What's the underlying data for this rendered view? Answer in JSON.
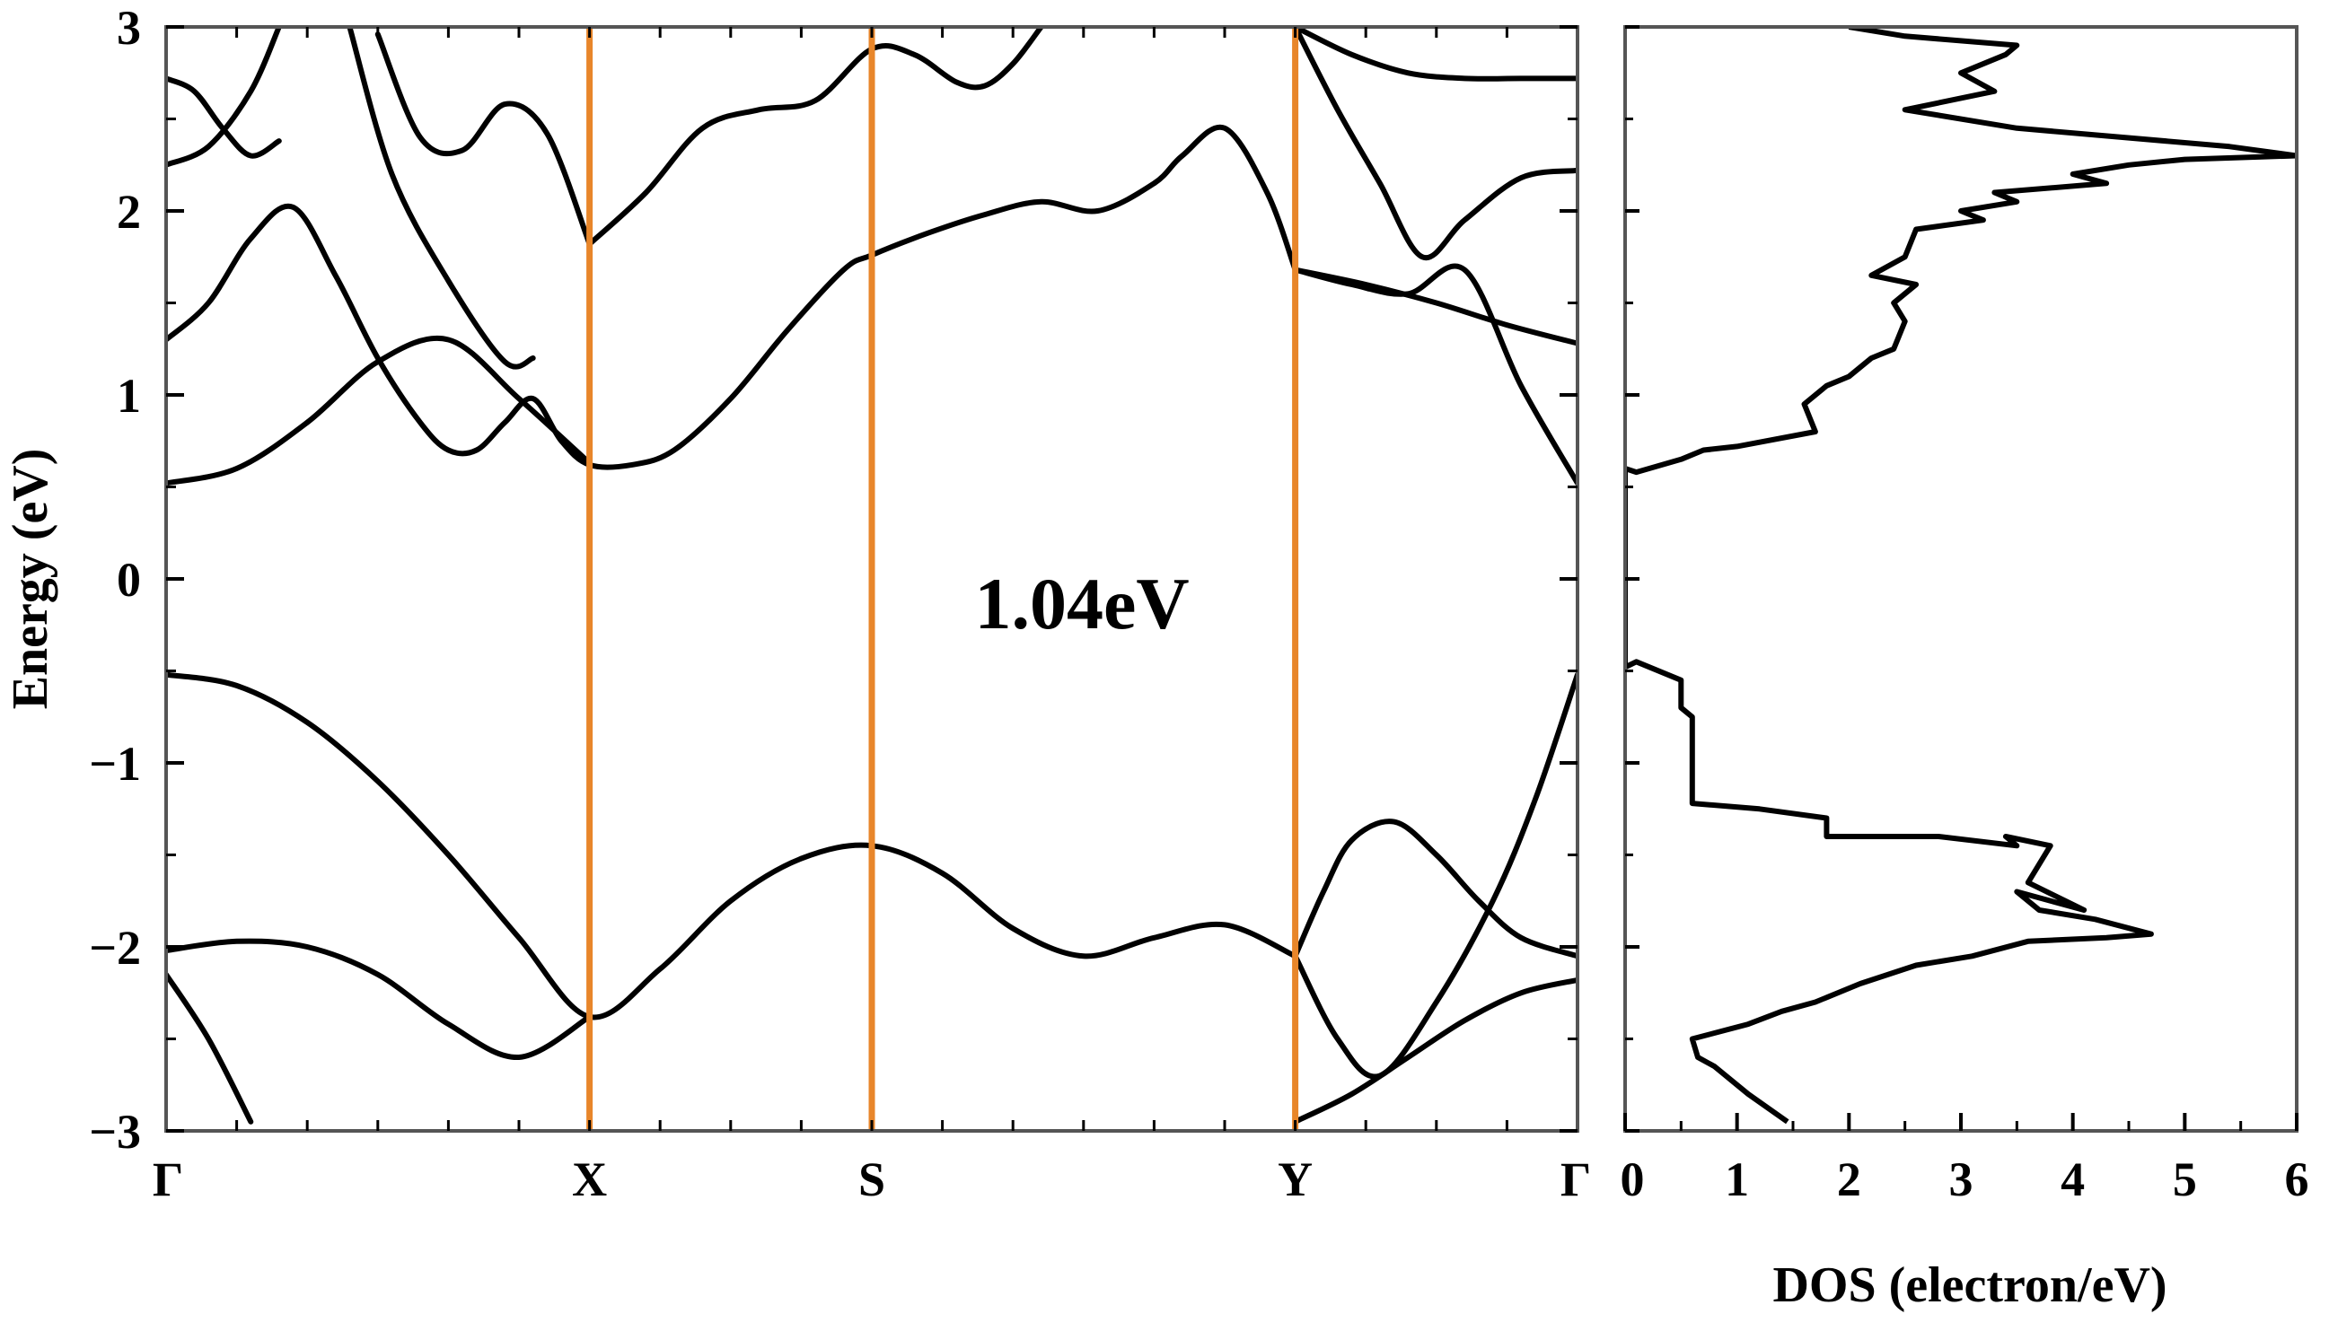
{
  "chart_data": [
    {
      "type": "line",
      "subtype": "band-structure",
      "ylabel": "Energy (eV)",
      "ylim": [
        -3,
        3
      ],
      "yticks": [
        "3",
        "2",
        "1",
        "0",
        "−1",
        "−2",
        "−3"
      ],
      "ytick_values": [
        3,
        2,
        1,
        0,
        -1,
        -2,
        -3
      ],
      "kpath": [
        "Γ",
        "X",
        "S",
        "Y",
        "Γ"
      ],
      "kpath_positions": [
        0,
        0.3,
        0.5,
        0.8,
        1.0
      ],
      "annotation": "1.04eV",
      "colors": {
        "bands": "#000000",
        "symmetry_lines": "#E8862A"
      },
      "bands": [
        {
          "x": [
            0,
            0.05,
            0.1,
            0.15,
            0.2,
            0.25,
            0.3,
            0.35,
            0.4,
            0.45,
            0.5,
            0.55,
            0.6,
            0.65,
            0.7,
            0.75,
            0.8
          ],
          "y": [
            -0.52,
            -0.58,
            -0.78,
            -1.1,
            -1.5,
            -1.95,
            -2.38,
            -2.12,
            -1.75,
            -1.52,
            -1.45,
            -1.6,
            -1.9,
            -2.05,
            -1.95,
            -1.88,
            -2.05
          ]
        },
        {
          "x": [
            0,
            0.05,
            0.1,
            0.15,
            0.2,
            0.25,
            0.3
          ],
          "y": [
            -2.02,
            -1.97,
            -2.0,
            -2.15,
            -2.42,
            -2.6,
            -2.38
          ]
        },
        {
          "x": [
            0,
            0.03,
            0.06
          ],
          "y": [
            -2.15,
            -2.5,
            -2.95
          ]
        },
        {
          "x": [
            0,
            0.05,
            0.1,
            0.15,
            0.2,
            0.25,
            0.3
          ],
          "y": [
            0.52,
            0.6,
            0.85,
            1.18,
            1.3,
            0.98,
            0.63
          ]
        },
        {
          "x": [
            0,
            0.03,
            0.06,
            0.09,
            0.12,
            0.15,
            0.18,
            0.2,
            0.22,
            0.24,
            0.26,
            0.28,
            0.3,
            0.33,
            0.36,
            0.4,
            0.44,
            0.48,
            0.5,
            0.54,
            0.58,
            0.62,
            0.66,
            0.7,
            0.72,
            0.75,
            0.78,
            0.8
          ],
          "y": [
            1.3,
            1.5,
            1.85,
            2.02,
            1.65,
            1.2,
            0.85,
            0.7,
            0.7,
            0.85,
            0.98,
            0.75,
            0.62,
            0.62,
            0.7,
            0.98,
            1.35,
            1.68,
            1.76,
            1.88,
            1.98,
            2.05,
            2.0,
            2.15,
            2.3,
            2.45,
            2.1,
            1.68
          ]
        },
        {
          "x": [
            0.3,
            0.34,
            0.38,
            0.42,
            0.46,
            0.5,
            0.53,
            0.56,
            0.58,
            0.6,
            0.62
          ],
          "y": [
            1.82,
            2.1,
            2.45,
            2.55,
            2.6,
            2.88,
            2.85,
            2.7,
            2.68,
            2.8,
            3.0
          ]
        },
        {
          "x": [
            0.15,
            0.18,
            0.21,
            0.24,
            0.27,
            0.3
          ],
          "y": [
            2.96,
            2.4,
            2.33,
            2.58,
            2.42,
            1.82
          ]
        },
        {
          "x": [
            0.13,
            0.16,
            0.2,
            0.24,
            0.26
          ],
          "y": [
            3.0,
            2.2,
            1.62,
            1.18,
            1.2
          ]
        },
        {
          "x": [
            0,
            0.02,
            0.04,
            0.06,
            0.08
          ],
          "y": [
            2.72,
            2.65,
            2.45,
            2.3,
            2.38
          ]
        },
        {
          "x": [
            0,
            0.03,
            0.06,
            0.08
          ],
          "y": [
            2.25,
            2.35,
            2.65,
            3.0
          ]
        },
        {
          "x": [
            0.8,
            0.85,
            0.9,
            0.95,
            1.0
          ],
          "y": [
            1.68,
            1.6,
            1.5,
            1.38,
            1.28
          ]
        },
        {
          "x": [
            0.8,
            0.84,
            0.88,
            0.92,
            0.96,
            1.0
          ],
          "y": [
            1.68,
            1.6,
            1.55,
            1.68,
            1.05,
            0.52
          ]
        },
        {
          "x": [
            0.8,
            0.83,
            0.86,
            0.89,
            0.92,
            0.96,
            1.0
          ],
          "y": [
            3.0,
            2.55,
            2.15,
            1.75,
            1.95,
            2.18,
            2.22
          ]
        },
        {
          "x": [
            0.8,
            0.84,
            0.88,
            0.92,
            0.96,
            1.0
          ],
          "y": [
            3.0,
            2.85,
            2.75,
            2.72,
            2.72,
            2.72
          ]
        },
        {
          "x": [
            0.8,
            0.82,
            0.84,
            0.87,
            0.9,
            0.93,
            0.96,
            1.0
          ],
          "y": [
            -2.05,
            -1.7,
            -1.42,
            -1.32,
            -1.5,
            -1.75,
            -1.95,
            -2.05
          ]
        },
        {
          "x": [
            0.8,
            0.83,
            0.86,
            0.9,
            0.94,
            0.97,
            1.0
          ],
          "y": [
            -2.05,
            -2.5,
            -2.7,
            -2.3,
            -1.75,
            -1.2,
            -0.52
          ]
        },
        {
          "x": [
            0.8,
            0.84,
            0.88,
            0.92,
            0.96,
            1.0
          ],
          "y": [
            -2.95,
            -2.8,
            -2.6,
            -2.4,
            -2.25,
            -2.18
          ]
        }
      ]
    },
    {
      "type": "line",
      "subtype": "density-of-states",
      "xlabel": "DOS (electron/eV)",
      "xlim": [
        0,
        6
      ],
      "ylim": [
        -3,
        3
      ],
      "xticks": [
        "0",
        "1",
        "2",
        "3",
        "4",
        "5",
        "6"
      ],
      "xtick_values": [
        0,
        1,
        2,
        3,
        4,
        5,
        6
      ],
      "color": "#000000",
      "x": [
        1.45,
        1.1,
        0.8,
        0.65,
        0.6,
        1.1,
        1.4,
        1.7,
        2.1,
        2.6,
        3.1,
        3.6,
        4.3,
        4.7,
        4.2,
        3.7,
        3.5,
        4.1,
        3.6,
        3.8,
        3.4,
        3.5,
        2.8,
        1.8,
        1.8,
        1.2,
        0.6,
        0.6,
        0.5,
        0.5,
        0.1,
        0.0,
        0.0,
        0.1,
        0.5,
        0.7,
        1.0,
        1.7,
        1.6,
        1.8,
        2.0,
        2.2,
        2.4,
        2.5,
        2.4,
        2.6,
        2.2,
        2.5,
        2.6,
        3.2,
        3.0,
        3.5,
        3.3,
        4.3,
        4.0,
        4.5,
        5.0,
        6.0,
        5.4,
        3.5,
        2.5,
        3.3,
        3.0,
        3.4,
        3.5,
        2.5,
        2.0
      ],
      "y": [
        -2.95,
        -2.8,
        -2.65,
        -2.6,
        -2.5,
        -2.42,
        -2.35,
        -2.3,
        -2.2,
        -2.1,
        -2.05,
        -1.97,
        -1.95,
        -1.93,
        -1.85,
        -1.8,
        -1.7,
        -1.8,
        -1.65,
        -1.45,
        -1.4,
        -1.45,
        -1.4,
        -1.4,
        -1.3,
        -1.25,
        -1.22,
        -0.75,
        -0.7,
        -0.55,
        -0.45,
        -0.48,
        0.6,
        0.58,
        0.65,
        0.7,
        0.72,
        0.8,
        0.95,
        1.05,
        1.1,
        1.2,
        1.25,
        1.4,
        1.5,
        1.6,
        1.65,
        1.75,
        1.9,
        1.95,
        2.0,
        2.05,
        2.1,
        2.15,
        2.2,
        2.25,
        2.28,
        2.3,
        2.35,
        2.45,
        2.55,
        2.65,
        2.75,
        2.85,
        2.9,
        2.95,
        3.0
      ]
    }
  ]
}
